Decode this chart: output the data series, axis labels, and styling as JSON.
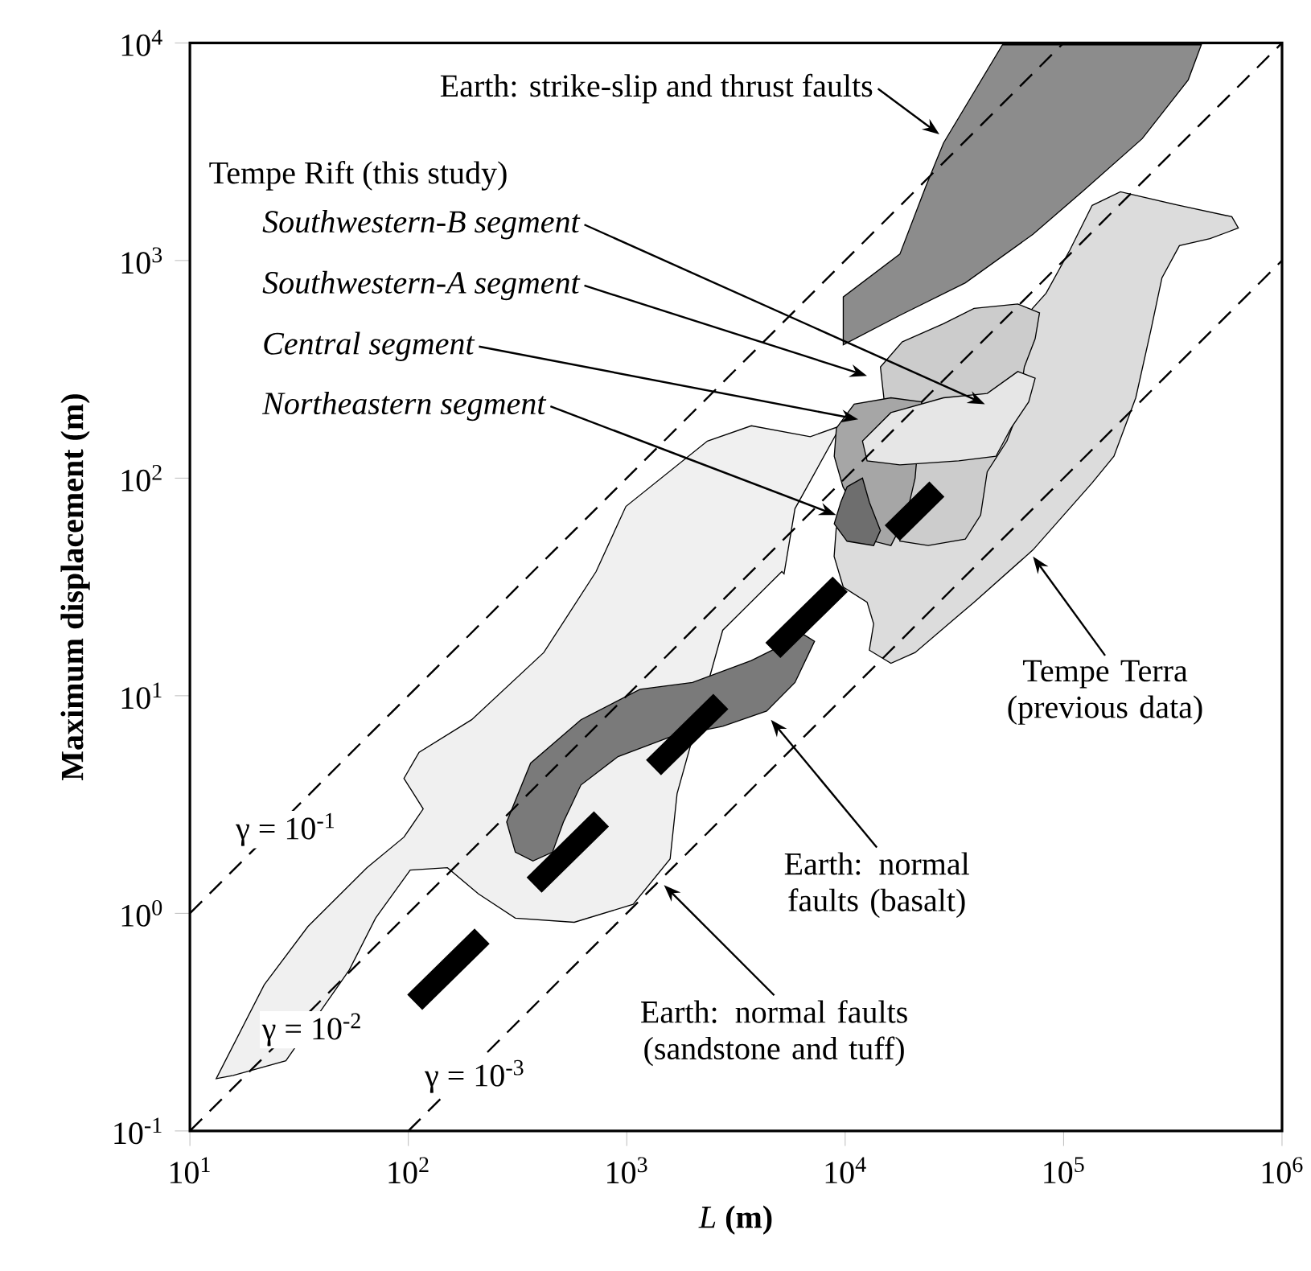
{
  "chart_data": {
    "type": "area",
    "xlabel": "*L* **(m)**",
    "ylabel": "Maximum displacement (m)",
    "log": "xy",
    "xlim": [
      10,
      1000000
    ],
    "ylim": [
      0.1,
      10000
    ],
    "xticks": [
      {
        "value": 10,
        "label": "10$^{1}$"
      },
      {
        "value": 100,
        "label": "10$^{2}$"
      },
      {
        "value": 1000,
        "label": "10$^{3}$"
      },
      {
        "value": 10000,
        "label": "10$^{4}$"
      },
      {
        "value": 100000,
        "label": "10$^{5}$"
      },
      {
        "value": 1000000,
        "label": "10$^{6}$"
      }
    ],
    "yticks": [
      {
        "value": 0.1,
        "label": "10$^{-1}$"
      },
      {
        "value": 1,
        "label": "10$^{0}$"
      },
      {
        "value": 10,
        "label": "10$^{1}$"
      },
      {
        "value": 100,
        "label": "10$^{2}$"
      },
      {
        "value": 1000,
        "label": "10$^{3}$"
      },
      {
        "value": 10000,
        "label": "10$^{4}$"
      }
    ],
    "series": [
      {
        "type": "area",
        "color": "#f0f0f0",
        "x": [
          13.2,
          21.9,
          34.7,
          64.6,
          95.5,
          117,
          95.5,
          112,
          195,
          417,
          724,
          991,
          2340,
          3720,
          6920,
          9550,
          5890,
          5250,
          5130,
          2750,
          1700,
          1580,
          1070,
          575,
          309,
          209,
          151,
          102,
          70.8,
          53.7,
          27.5,
          15.8
        ],
        "values": [
          0.174,
          0.47,
          0.87,
          1.62,
          2.24,
          3.02,
          4.17,
          5.5,
          7.76,
          15.8,
          37.2,
          74.1,
          148,
          174,
          155,
          174,
          72.4,
          36.3,
          37.2,
          20,
          3.55,
          1.78,
          1.1,
          0.91,
          0.95,
          1.23,
          1.62,
          1.58,
          0.95,
          0.55,
          0.21,
          0.18
        ]
      },
      {
        "type": "area",
        "color": "#dcdcdc",
        "x": [
          135000,
          182000,
          339000,
          589000,
          631000,
          468000,
          339000,
          282000,
          251000,
          214000,
          170000,
          135000,
          72400,
          38900,
          20900,
          16200,
          12900,
          13500,
          12600,
          9800,
          8900,
          9100,
          83200,
          107000
        ],
        "values": [
          1790,
          2070,
          1790,
          1590,
          1410,
          1260,
          1170,
          832,
          479,
          234,
          126,
          95,
          46.8,
          26.9,
          15.8,
          14.1,
          16.2,
          21.4,
          26.9,
          31.6,
          43.7,
          58.9,
          708,
          1120
        ]
      },
      {
        "type": "area",
        "color": "#8c8c8c",
        "x": [
          9800,
          9800,
          17800,
          23400,
          28200,
          52500,
          427000,
          372000,
          229000,
          123000,
          72400,
          35500,
          17800
        ],
        "values": [
          410,
          680,
          1070,
          2190,
          3470,
          9800,
          9800,
          6760,
          3630,
          2090,
          1320,
          790,
          560
        ]
      },
      {
        "type": "area",
        "color": "#7a7a7a",
        "x": [
          309,
          282,
          363,
          617,
          1150,
          2000,
          3720,
          6460,
          7240,
          5890,
          4370,
          2750,
          1580,
          912,
          617,
          513,
          457,
          372
        ],
        "values": [
          1.91,
          2.63,
          4.9,
          7.76,
          10.7,
          11.5,
          14.5,
          19.1,
          17.8,
          11.5,
          8.5,
          7.24,
          6.46,
          5.25,
          3.89,
          2.63,
          1.91,
          1.74
        ]
      },
      {
        "type": "area",
        "color": "#cccccc",
        "x": [
          18200,
          28200,
          38900,
          61700,
          77600,
          74100,
          66100,
          61700,
          55000,
          44700,
          41700,
          35500,
          24000,
          17800,
          14500
        ],
        "values": [
          422,
          513,
          603,
          631,
          575,
          437,
          324,
          200,
          148,
          107,
          67.6,
          52.5,
          49,
          51.3,
          324
        ]
      },
      {
        "type": "area",
        "color": "#a6a6a6",
        "x": [
          9120,
          11000,
          16200,
          22400,
          20900,
          19100,
          16200,
          13500,
          9770,
          8910
        ],
        "values": [
          170,
          219,
          234,
          224,
          100,
          67.6,
          49,
          51.3,
          91.2,
          126
        ]
      },
      {
        "type": "area",
        "color": "#6e6e6e",
        "x": [
          10200,
          12000,
          12900,
          14500,
          13500,
          10200,
          8910,
          9550
        ],
        "values": [
          91.2,
          100,
          77.6,
          57.5,
          49,
          51.3,
          61.7,
          77.6
        ]
      },
      {
        "type": "area",
        "color": "#e6e6e6",
        "x": [
          12000,
          16200,
          28200,
          44700,
          61700,
          74100,
          69200,
          57500,
          49000,
          33100,
          17800,
          12600
        ],
        "values": [
          148,
          200,
          234,
          245,
          309,
          288,
          224,
          170,
          126,
          120,
          115,
          120
        ]
      },
      {
        "type": "line",
        "color": "#000000",
        "line_style": "dashed",
        "x": [
          10,
          100000
        ],
        "values": [
          1,
          10000
        ]
      },
      {
        "type": "line",
        "color": "#000000",
        "line_style": "dashed",
        "x": [
          10,
          1000000
        ],
        "values": [
          0.1,
          10000
        ]
      },
      {
        "type": "line",
        "color": "#000000",
        "line_style": "dashed",
        "x": [
          100,
          1000000
        ],
        "values": [
          0.1,
          1000
        ]
      },
      {
        "type": "line",
        "color": "#000000",
        "line_style": "dashed",
        "x": [
          107,
          26300
        ],
        "values": [
          0.39,
          89
        ]
      }
    ],
    "annotations": [
      {
        "text": "Earth: strike-slip and thrust faults",
        "x": 27000,
        "y": 3800
      },
      "Tempe Rift (this study)",
      "Southwestern-B segment",
      "Southwestern-A segment",
      "Central segment",
      {
        "text": "Northeastern segment",
        "x": 9100,
        "y": 67.6
      },
      {
        "text": "Tempe Terra (previous data)",
        "x": 72400,
        "y": 43.7
      },
      "Earth: normal faults (basalt)",
      {
        "text": "Earth: normal faults (sandstone and tuff)",
        "x": 1480,
        "y": 1.35
      },
      "γ = 10$^{-1}$",
      "γ = 10$^{-2}$",
      "γ = 10$^{-3}$"
    ]
  }
}
